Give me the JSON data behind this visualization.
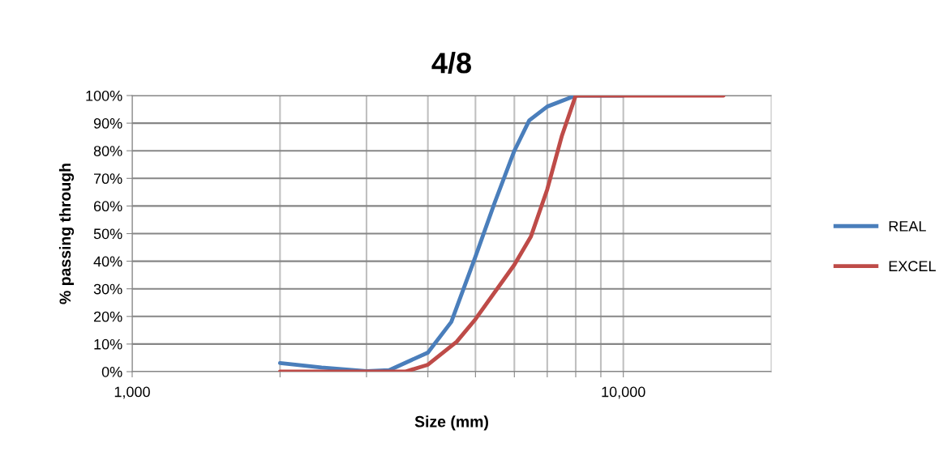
{
  "chart_data": {
    "type": "line",
    "title": "4/8",
    "xlabel": "Size (mm)",
    "ylabel": "% passing through",
    "log": "x",
    "xlim": [
      1000,
      20000
    ],
    "xticks": [
      {
        "value": 1000,
        "label": "1,000"
      },
      {
        "value": 2000,
        "label": null
      },
      {
        "value": 3000,
        "label": null
      },
      {
        "value": 4000,
        "label": null
      },
      {
        "value": 5000,
        "label": null
      },
      {
        "value": 6000,
        "label": null
      },
      {
        "value": 7000,
        "label": null
      },
      {
        "value": 8000,
        "label": null
      },
      {
        "value": 9000,
        "label": null
      },
      {
        "value": 10000,
        "label": "10,000"
      }
    ],
    "ylim": [
      0,
      100
    ],
    "yticks": [
      {
        "value": 0,
        "label": "0%"
      },
      {
        "value": 10,
        "label": "10%"
      },
      {
        "value": 20,
        "label": "20%"
      },
      {
        "value": 30,
        "label": "30%"
      },
      {
        "value": 40,
        "label": "40%"
      },
      {
        "value": 50,
        "label": "50%"
      },
      {
        "value": 60,
        "label": "60%"
      },
      {
        "value": 70,
        "label": "70%"
      },
      {
        "value": 80,
        "label": "80%"
      },
      {
        "value": 90,
        "label": "90%"
      },
      {
        "value": 100,
        "label": "100%"
      }
    ],
    "grid": true,
    "legend": "right",
    "marker": "none",
    "line_style": "solid",
    "series": [
      {
        "name": "REAL",
        "color": "#4a7ebb",
        "x": [
          2000,
          2430,
          3000,
          3335,
          4000,
          4464,
          5000,
          5466,
          6000,
          6435,
          7000,
          8000,
          10000
        ],
        "values": [
          3.1,
          1.5,
          0.2,
          0.5,
          6.9,
          18,
          41.7,
          61,
          80,
          91,
          96,
          100,
          100
        ]
      },
      {
        "name": "EXCEL",
        "color": "#be4b48",
        "x": [
          2000,
          3000,
          3597,
          4000,
          4577,
          5000,
          6000,
          6486,
          7000,
          7500,
          8000,
          10000,
          16000
        ],
        "values": [
          0,
          0,
          0,
          2.5,
          10.8,
          19,
          38.7,
          49,
          66,
          85.5,
          100,
          100,
          100
        ]
      }
    ]
  }
}
